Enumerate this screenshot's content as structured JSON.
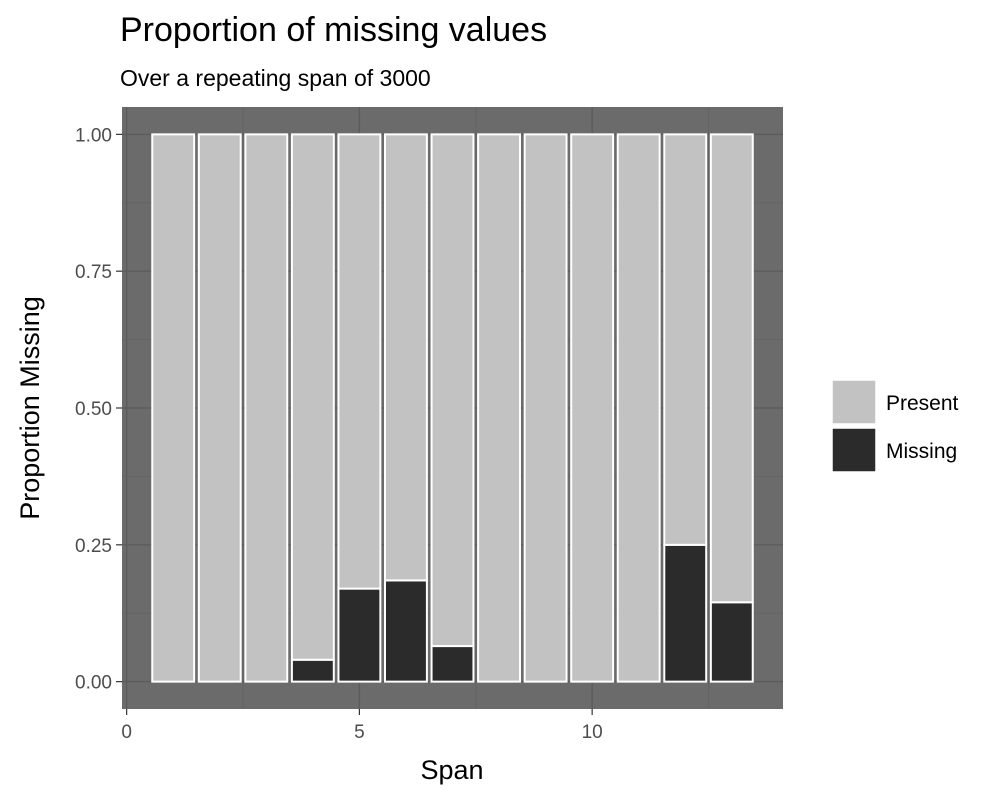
{
  "chart_data": {
    "type": "bar",
    "stacked": true,
    "title": "Proportion of missing values",
    "subtitle": "Over a repeating span of 3000",
    "xlabel": "Span",
    "ylabel": "Proportion Missing",
    "xlim": [
      -0.1,
      14.1
    ],
    "ylim": [
      -0.05,
      1.05
    ],
    "x_ticks": [
      0,
      5,
      10
    ],
    "x_tick_labels": [
      "0",
      "5",
      "10"
    ],
    "y_ticks": [
      0,
      0.25,
      0.5,
      0.75,
      1.0
    ],
    "y_tick_labels": [
      "0.00",
      "0.25",
      "0.50",
      "0.75",
      "1.00"
    ],
    "grid": true,
    "legend_position": "right",
    "x": [
      1,
      2,
      3,
      4,
      5,
      6,
      7,
      8,
      9,
      10,
      11,
      12,
      13
    ],
    "series": [
      {
        "name": "Present",
        "color": "#c2c2c2",
        "values": [
          1.0,
          1.0,
          1.0,
          0.96,
          0.83,
          0.815,
          0.935,
          1.0,
          1.0,
          1.0,
          1.0,
          0.75,
          0.855
        ]
      },
      {
        "name": "Missing",
        "color": "#2b2b2b",
        "values": [
          0.0,
          0.0,
          0.0,
          0.04,
          0.17,
          0.185,
          0.065,
          0.0,
          0.0,
          0.0,
          0.0,
          0.25,
          0.145
        ]
      }
    ],
    "panel_color": "#6b6b6b",
    "grid_major_color": "#5c5c5c",
    "grid_minor_color": "#646464",
    "bar_outline_color": "#ffffff"
  }
}
